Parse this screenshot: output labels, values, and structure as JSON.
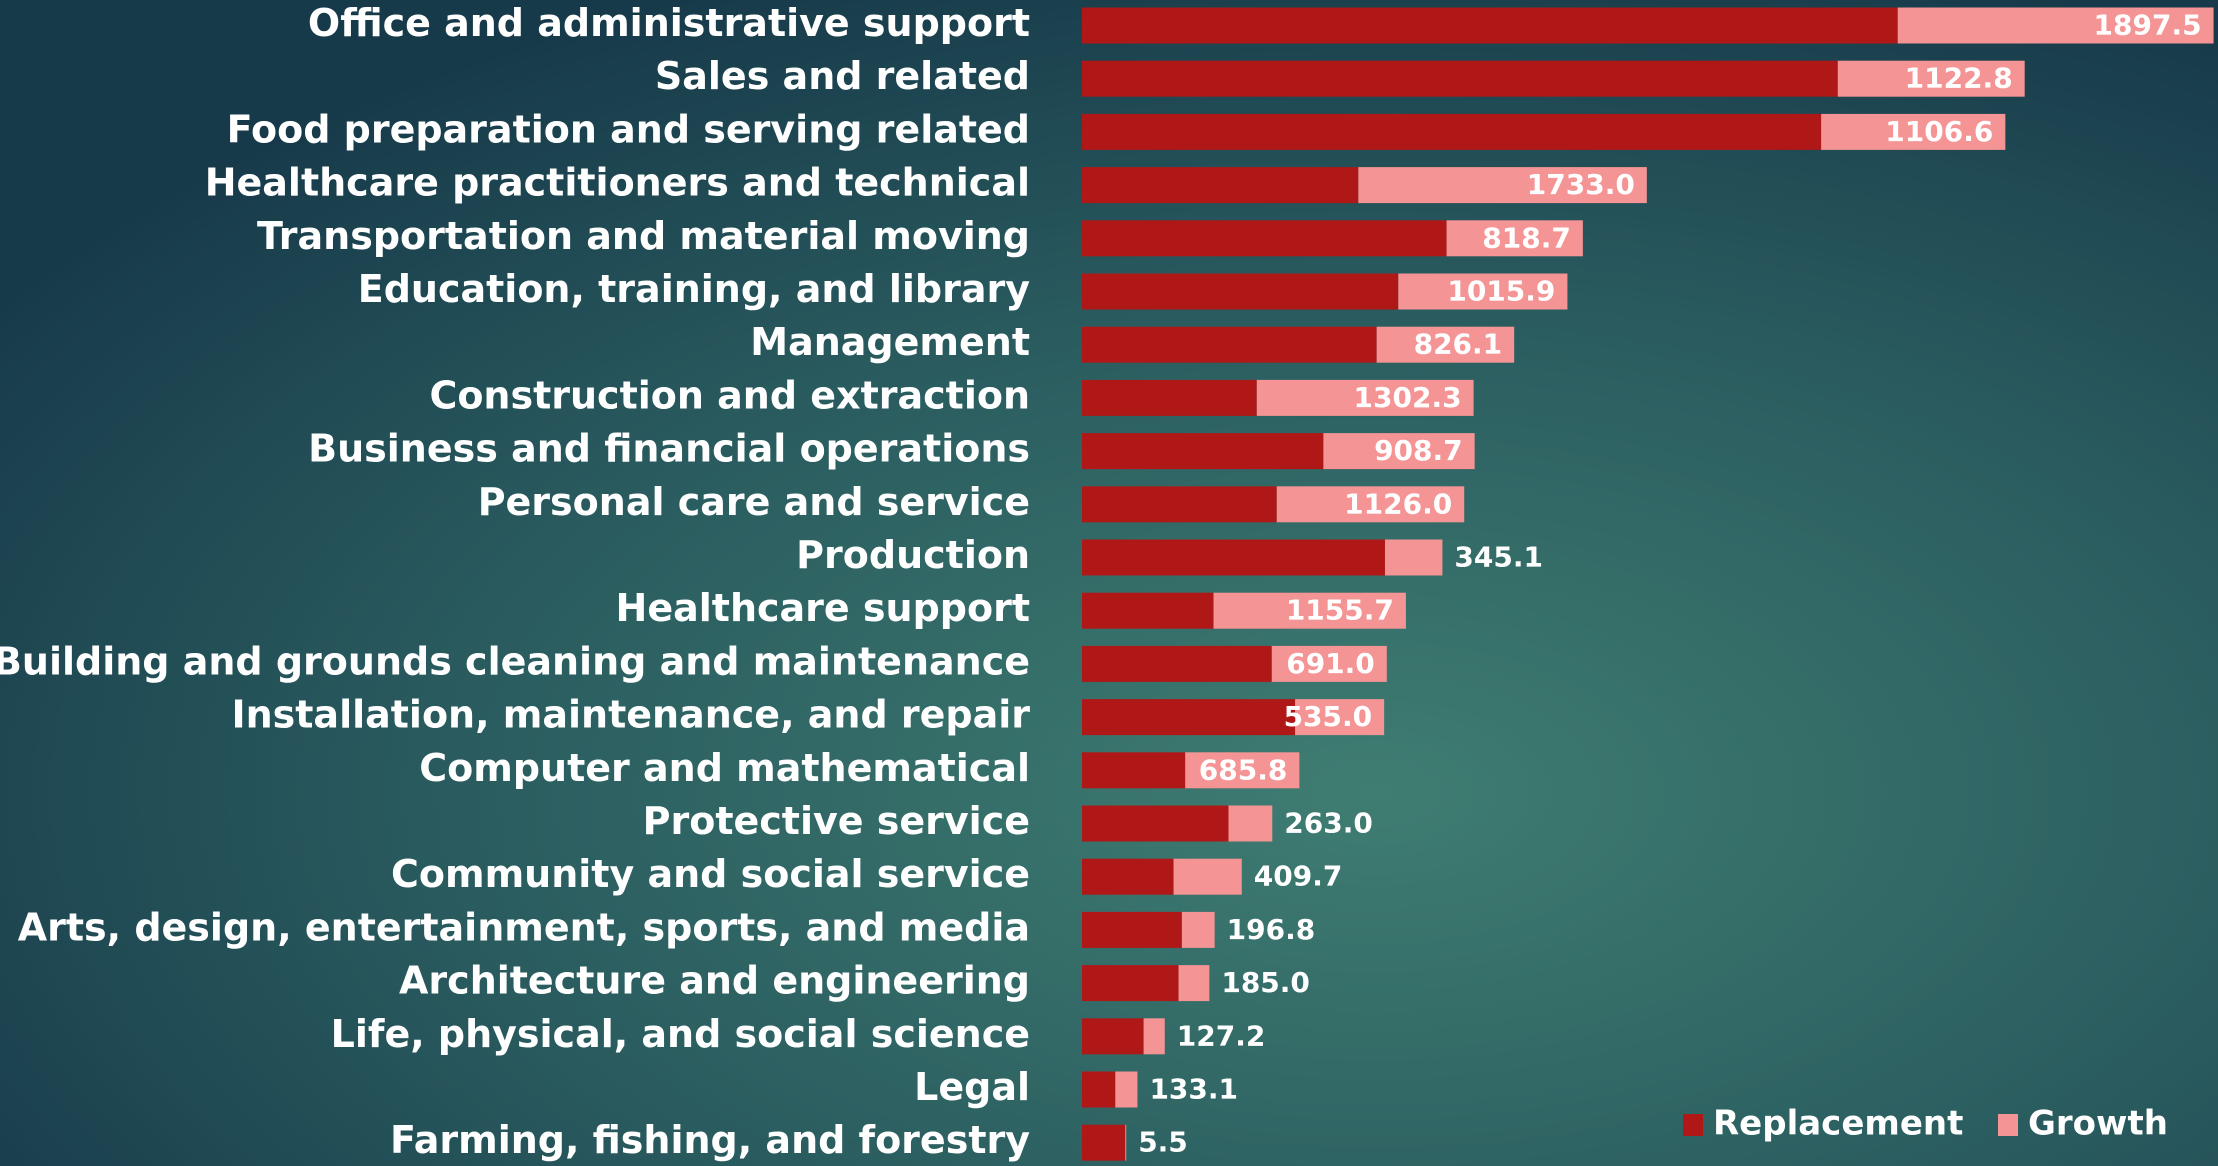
{
  "chart_data": {
    "type": "stacked_bar_horizontal",
    "categories": [
      "Office and administrative support",
      "Sales and related",
      "Food preparation and serving related",
      "Healthcare practitioners and technical",
      "Transportation and material moving",
      "Education, training, and library",
      "Management",
      "Construction and extraction",
      "Business and financial operations",
      "Personal care and service",
      "Production",
      "Healthcare support",
      "Building and grounds cleaning and maintenance",
      "Installation, maintenance, and repair",
      "Computer and mathematical",
      "Protective service",
      "Community and social service",
      "Arts, design, entertainment, sports, and media",
      "Architecture and engineering",
      "Life, physical, and social science",
      "Legal",
      "Farming, fishing, and forestry"
    ],
    "series": [
      {
        "name": "Replacement",
        "color": "#b01818",
        "values": [
          4900,
          4540,
          4440,
          1660,
          2190,
          1900,
          1770,
          1050,
          1450,
          1170,
          1820,
          790,
          1140,
          1280,
          620,
          880,
          550,
          600,
          580,
          370,
          200,
          260
        ]
      },
      {
        "name": "Growth",
        "color": "#f49494",
        "values": [
          1897.5,
          1122.8,
          1106.6,
          1733.0,
          818.7,
          1015.9,
          826.1,
          1302.3,
          908.7,
          1126.0,
          345.1,
          1155.7,
          691.0,
          535.0,
          685.8,
          263.0,
          409.7,
          196.8,
          185.0,
          127.2,
          133.1,
          5.5
        ],
        "value_labels": [
          "1897.5",
          "1122.8",
          "1106.6",
          "1733.0",
          "818.7",
          "1015.9",
          "826.1",
          "1302.3",
          "908.7",
          "1126.0",
          "345.1",
          "1155.7",
          "691.0",
          "535.0",
          "685.8",
          "263.0",
          "409.7",
          "196.8",
          "185.0",
          "127.2",
          "133.1",
          "5.5"
        ]
      }
    ],
    "xlim": [
      0,
      6800
    ],
    "legend": "bottom-right"
  }
}
